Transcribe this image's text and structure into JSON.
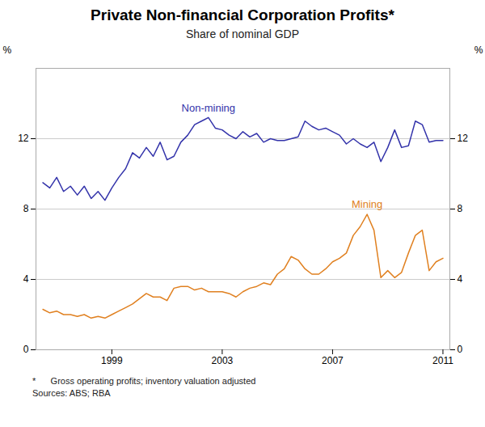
{
  "chart_data": {
    "type": "line",
    "title": "Private Non-financial Corporation Profits*",
    "subtitle": "Share of nominal GDP",
    "annotations": [
      "*      Gross operating profits; inventory valuation adjusted",
      "Sources: ABS; RBA"
    ],
    "ylabel": "%",
    "y2label": "%",
    "xlim": [
      1996.25,
      2011.25
    ],
    "xticks": [
      1999,
      2003,
      2007,
      2011
    ],
    "ylim": [
      0,
      16
    ],
    "yticks": [
      0,
      4,
      8,
      12
    ],
    "y2lim": [
      0,
      16
    ],
    "y2ticks": [
      0,
      4,
      8,
      12
    ],
    "grid": true,
    "x": [
      1996.5,
      1996.75,
      1997.0,
      1997.25,
      1997.5,
      1997.75,
      1998.0,
      1998.25,
      1998.5,
      1998.75,
      1999.0,
      1999.25,
      1999.5,
      1999.75,
      2000.0,
      2000.25,
      2000.5,
      2000.75,
      2001.0,
      2001.25,
      2001.5,
      2001.75,
      2002.0,
      2002.25,
      2002.5,
      2002.75,
      2003.0,
      2003.25,
      2003.5,
      2003.75,
      2004.0,
      2004.25,
      2004.5,
      2004.75,
      2005.0,
      2005.25,
      2005.5,
      2005.75,
      2006.0,
      2006.25,
      2006.5,
      2006.75,
      2007.0,
      2007.25,
      2007.5,
      2007.75,
      2008.0,
      2008.25,
      2008.5,
      2008.75,
      2009.0,
      2009.25,
      2009.5,
      2009.75,
      2010.0,
      2010.25,
      2010.5,
      2010.75,
      2011.0
    ],
    "series": [
      {
        "name": "Non-mining",
        "color": "#3333aa",
        "values": [
          9.5,
          9.2,
          9.8,
          9.0,
          9.3,
          8.8,
          9.3,
          8.6,
          9.0,
          8.5,
          9.2,
          9.8,
          10.3,
          11.2,
          10.9,
          11.5,
          11.0,
          11.8,
          10.8,
          11.0,
          11.8,
          12.2,
          12.8,
          13.0,
          13.2,
          12.6,
          12.5,
          12.2,
          12.0,
          12.4,
          12.1,
          12.3,
          11.8,
          12.0,
          11.9,
          11.9,
          12.0,
          12.1,
          13.0,
          12.7,
          12.5,
          12.6,
          12.4,
          12.2,
          11.7,
          12.0,
          11.7,
          11.5,
          11.8,
          10.7,
          11.5,
          12.5,
          11.5,
          11.6,
          13.0,
          12.8,
          11.8,
          11.9,
          11.9
        ]
      },
      {
        "name": "Mining",
        "color": "#e08020",
        "values": [
          2.3,
          2.1,
          2.2,
          2.0,
          2.0,
          1.9,
          2.0,
          1.8,
          1.9,
          1.8,
          2.0,
          2.2,
          2.4,
          2.6,
          2.9,
          3.2,
          3.0,
          3.0,
          2.8,
          3.5,
          3.6,
          3.6,
          3.4,
          3.5,
          3.3,
          3.3,
          3.3,
          3.2,
          3.0,
          3.3,
          3.5,
          3.6,
          3.8,
          3.7,
          4.3,
          4.6,
          5.3,
          5.1,
          4.6,
          4.3,
          4.3,
          4.6,
          5.0,
          5.2,
          5.5,
          6.5,
          7.0,
          7.7,
          6.8,
          4.1,
          4.5,
          4.1,
          4.4,
          5.5,
          6.5,
          6.8,
          4.5,
          5.0,
          5.2
        ]
      }
    ]
  }
}
